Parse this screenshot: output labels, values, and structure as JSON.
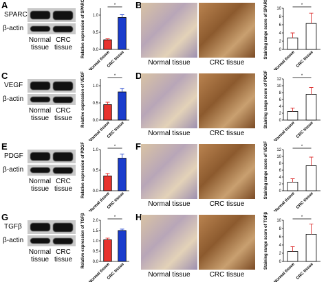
{
  "panels": [
    {
      "letter": "A",
      "protein": "SPARC",
      "control": "β-actin",
      "lanes": [
        "Normal tissue",
        "CRC tissue"
      ],
      "image_letter": "B",
      "image_labels": [
        "Normal tissue",
        "CRC tissue"
      ]
    },
    {
      "letter": "C",
      "protein": "VEGF",
      "control": "β-actin",
      "lanes": [
        "Normal tissue",
        "CRC tissue"
      ],
      "image_letter": "D",
      "image_labels": [
        "Normal tissue",
        "CRC tissue"
      ]
    },
    {
      "letter": "E",
      "protein": "PDGF",
      "control": "β-actin",
      "lanes": [
        "Normal tissue",
        "CRC tissue"
      ],
      "image_letter": "F",
      "image_labels": [
        "Normal tissue",
        "CRC tissue"
      ]
    },
    {
      "letter": "G",
      "protein": "TGFβ",
      "control": "β-actin",
      "lanes": [
        "Normal tissue",
        "CRC tissue"
      ],
      "image_letter": "H",
      "image_labels": [
        "Normal tissue",
        "CRC tissue"
      ]
    }
  ],
  "chart_data": [
    {
      "type": "bar",
      "ylabel": "Relative expression of SPARC",
      "categories": [
        "Normal tissue",
        "CRC tissue"
      ],
      "values": [
        0.28,
        0.93
      ],
      "errors": [
        0.03,
        0.08
      ],
      "colors": [
        "#e8332e",
        "#1a3ccc"
      ],
      "ylim": [
        0,
        1.2
      ],
      "yticks": [
        {
          "value": 0,
          "label": "0.0"
        },
        {
          "value": 0.5,
          "label": "0.5"
        },
        {
          "value": 1,
          "label": "1.0"
        }
      ],
      "annotation": "*"
    },
    {
      "type": "bar",
      "ylabel": "Staining range score of SPARC",
      "categories": [
        "Normal tissue",
        "CRC tissue"
      ],
      "values": [
        2.8,
        6.3
      ],
      "errors": [
        1.2,
        2.5
      ],
      "colors": [
        "#ffffff",
        "#ffffff"
      ],
      "ylim": [
        0,
        10
      ],
      "yticks": [
        0,
        2,
        4,
        6,
        8,
        10
      ],
      "annotation": "*"
    },
    {
      "type": "bar",
      "ylabel": "Relative expression of VEGF",
      "categories": [
        "Normal tissue",
        "CRC tissue"
      ],
      "values": [
        0.45,
        0.82
      ],
      "errors": [
        0.07,
        0.1
      ],
      "colors": [
        "#e8332e",
        "#1a3ccc"
      ],
      "ylim": [
        0,
        1.2
      ],
      "yticks": [
        {
          "value": 0,
          "label": "0.0"
        },
        {
          "value": 0.5,
          "label": "0.5"
        },
        {
          "value": 1,
          "label": "1.0"
        }
      ],
      "annotation": "*"
    },
    {
      "type": "bar",
      "ylabel": "Staining range score of PDGF",
      "categories": [
        "Normal tissue",
        "CRC tissue"
      ],
      "values": [
        2.5,
        7.5
      ],
      "errors": [
        1,
        2
      ],
      "colors": [
        "#ffffff",
        "#ffffff"
      ],
      "ylim": [
        0,
        12
      ],
      "yticks": [
        0,
        2,
        4,
        6,
        8,
        10,
        12
      ],
      "annotation": "*"
    },
    {
      "type": "bar",
      "ylabel": "Relative expression of PDGF",
      "categories": [
        "Normal tissue",
        "CRC tissue"
      ],
      "values": [
        0.36,
        0.79
      ],
      "errors": [
        0.06,
        0.1
      ],
      "colors": [
        "#e8332e",
        "#1a3ccc"
      ],
      "ylim": [
        0,
        1.0
      ],
      "yticks": [
        {
          "value": 0,
          "label": "0.0"
        },
        {
          "value": 0.5,
          "label": "0.5"
        },
        {
          "value": 1,
          "label": "1.0"
        }
      ],
      "annotation": "*"
    },
    {
      "type": "bar",
      "ylabel": "Staining range score of VEGF",
      "categories": [
        "Normal tissue",
        "CRC tissue"
      ],
      "values": [
        2.5,
        7.3
      ],
      "errors": [
        1,
        2.5
      ],
      "colors": [
        "#ffffff",
        "#ffffff"
      ],
      "ylim": [
        0,
        12
      ],
      "yticks": [
        0,
        2,
        4,
        6,
        8,
        10,
        12
      ],
      "annotation": "*"
    },
    {
      "type": "bar",
      "ylabel": "Relative expression of TGFβ",
      "categories": [
        "Normal tissue",
        "CRC tissue"
      ],
      "values": [
        1.05,
        1.5
      ],
      "errors": [
        0.08,
        0.07
      ],
      "colors": [
        "#e8332e",
        "#1a3ccc"
      ],
      "ylim": [
        0,
        2.0
      ],
      "yticks": [
        {
          "value": 0,
          "label": "0.0"
        },
        {
          "value": 0.5,
          "label": "0.5"
        },
        {
          "value": 1,
          "label": "1.0"
        },
        {
          "value": 1.5,
          "label": "1.5"
        },
        {
          "value": 2,
          "label": "2.0"
        }
      ],
      "annotation": "*"
    },
    {
      "type": "bar",
      "ylabel": "Staining range score of TGFβ",
      "categories": [
        "Normal tissue",
        "CRC tissue"
      ],
      "values": [
        2.4,
        6.6
      ],
      "errors": [
        1.2,
        2.5
      ],
      "colors": [
        "#ffffff",
        "#ffffff"
      ],
      "ylim": [
        0,
        10
      ],
      "yticks": [
        0,
        2,
        4,
        6,
        8,
        10
      ],
      "annotation": "*"
    }
  ]
}
